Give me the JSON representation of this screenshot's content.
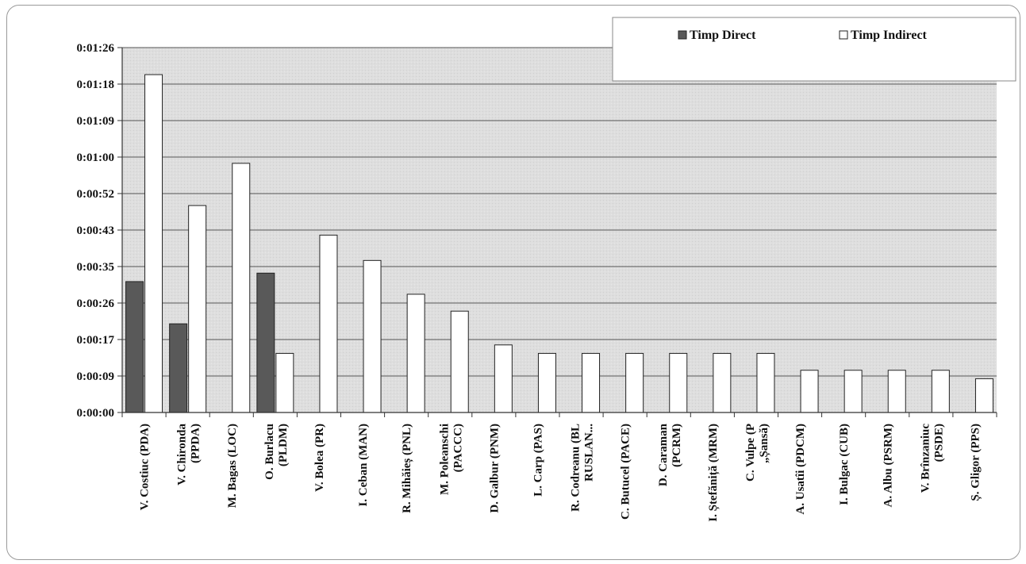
{
  "chart_data": {
    "type": "bar",
    "title": "",
    "xlabel": "",
    "ylabel": "",
    "y_tick_labels": [
      "0:00:00",
      "0:00:09",
      "0:00:17",
      "0:00:26",
      "0:00:35",
      "0:00:43",
      "0:00:52",
      "0:01:00",
      "0:01:09",
      "0:01:18",
      "0:01:26"
    ],
    "ylim_seconds": [
      0,
      86.4
    ],
    "grid": true,
    "legend_position": "top-right",
    "categories": [
      [
        "V. Costiuc (PDA)"
      ],
      [
        "V. Chironda",
        "(PPDA)"
      ],
      [
        "M. Bagas (LOC)"
      ],
      [
        "O. Burlacu",
        "(PLDM)"
      ],
      [
        "V. Bolea (PR)"
      ],
      [
        "I. Ceban (MAN)"
      ],
      [
        "R. Mihăieș (PNL)"
      ],
      [
        "M. Poleanschi",
        "(PACCC)"
      ],
      [
        "D. Galbur (PNM)"
      ],
      [
        "L. Carp (PAS)"
      ],
      [
        "R. Codreanu (BL",
        "RUSLAN..."
      ],
      [
        "C. Butucel (PACE)"
      ],
      [
        "D. Caraman",
        "(PCRM)"
      ],
      [
        "I. Ștefăniță (MRM)"
      ],
      [
        "C. Vulpe (P",
        "„Șansă)"
      ],
      [
        "A. Usatîi (PDCM)"
      ],
      [
        "I. Bulgac (CUB)"
      ],
      [
        "A. Albu (PSRM)"
      ],
      [
        "V.  Brînzaniuc",
        "(PSDE)"
      ],
      [
        "Ș. Gligor (PPS)"
      ]
    ],
    "series": [
      {
        "name": "Timp Direct",
        "color": "#595959",
        "values_seconds": [
          31,
          21,
          0,
          33,
          0,
          0,
          0,
          0,
          0,
          0,
          0,
          0,
          0,
          0,
          0,
          0,
          0,
          0,
          0,
          0
        ]
      },
      {
        "name": "Timp Indirect",
        "color": "#ffffff",
        "values_seconds": [
          80,
          49,
          59,
          14,
          42,
          36,
          28,
          24,
          16,
          14,
          14,
          14,
          14,
          14,
          14,
          10,
          10,
          10,
          10,
          8
        ]
      }
    ]
  }
}
